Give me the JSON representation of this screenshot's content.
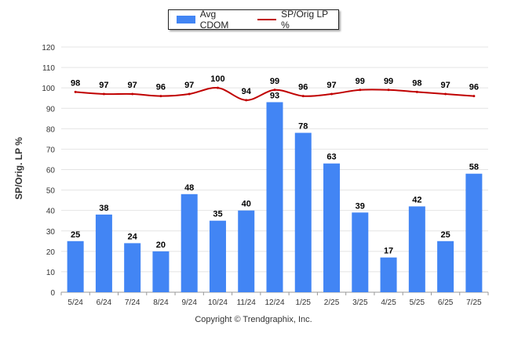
{
  "chart_data": {
    "type": "bar",
    "title": "",
    "ylabel": "SP/Orig. LP %",
    "xlabel": "",
    "ylim": [
      0,
      120
    ],
    "yticks": [
      0,
      10,
      20,
      30,
      40,
      50,
      60,
      70,
      80,
      90,
      100,
      110,
      120
    ],
    "grid": true,
    "legend_position": "top-center",
    "categories": [
      "5/24",
      "6/24",
      "7/24",
      "8/24",
      "9/24",
      "10/24",
      "11/24",
      "12/24",
      "1/25",
      "2/25",
      "3/25",
      "4/25",
      "5/25",
      "6/25",
      "7/25"
    ],
    "series": [
      {
        "name": "Avg CDOM",
        "type": "bar",
        "color": "#4285f4",
        "values": [
          25,
          38,
          24,
          20,
          48,
          35,
          40,
          93,
          78,
          63,
          39,
          17,
          42,
          25,
          58
        ]
      },
      {
        "name": "SP/Orig LP %",
        "type": "line",
        "color": "#c00000",
        "values": [
          98,
          97,
          97,
          96,
          97,
          100,
          94,
          99,
          96,
          97,
          99,
          99,
          98,
          97,
          96
        ]
      }
    ]
  },
  "credit": "Copyright © Trendgraphix, Inc."
}
